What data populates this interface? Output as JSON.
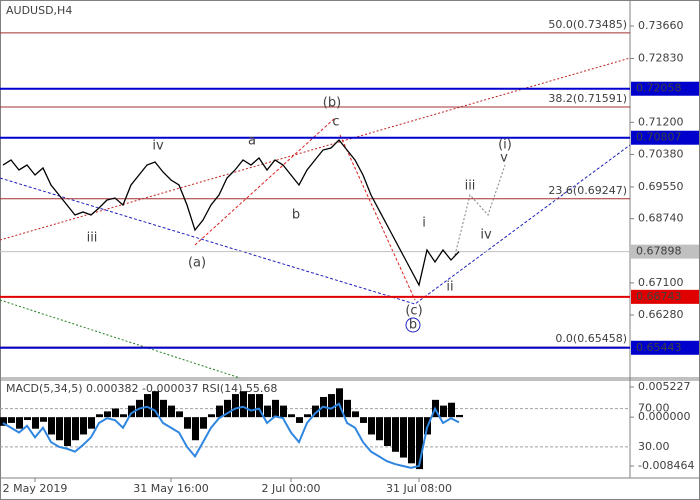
{
  "chart_data": [
    {
      "type": "line",
      "title": "AUDUSD,H4",
      "color": "#000000",
      "values": [
        0.7011,
        0.70238,
        0.69983,
        0.7011,
        0.69855,
        0.70034,
        0.696,
        0.69344,
        0.69089,
        0.68834,
        0.6891,
        0.68834,
        0.69012,
        0.69216,
        0.69267,
        0.69089,
        0.696,
        0.69855,
        0.7011,
        0.70187,
        0.69932,
        0.69727,
        0.696,
        0.69089,
        0.6845,
        0.68706,
        0.69089,
        0.69344,
        0.69778,
        0.69983,
        0.70238,
        0.7011,
        0.70289,
        0.69983,
        0.70238,
        0.7011,
        0.69855,
        0.696,
        0.69983,
        0.70238,
        0.70493,
        0.70544,
        0.70749,
        0.70493,
        0.70238,
        0.69855,
        0.69344,
        0.68961,
        0.68578,
        0.68195,
        0.67812,
        0.67429,
        0.67045,
        0.6794,
        0.67633,
        0.6794,
        0.67684,
        0.67898
      ],
      "ylim": [
        0.64671,
        0.74324
      ],
      "yticks": [
        {
          "value": 0.7366,
          "label": "0.73660"
        },
        {
          "value": 0.7283,
          "label": "0.72830"
        },
        {
          "value": 0.712,
          "label": "0.71200"
        },
        {
          "value": 0.7038,
          "label": "0.70380"
        },
        {
          "value": 0.6955,
          "label": "0.69550"
        },
        {
          "value": 0.6874,
          "label": "0.68740"
        },
        {
          "value": 0.671,
          "label": "0.67100"
        },
        {
          "value": 0.6628,
          "label": "0.66280"
        }
      ],
      "levels": [
        {
          "value": 0.72058,
          "label": "0.72058",
          "color": "#0000cc"
        },
        {
          "value": 0.70807,
          "label": "0.70807",
          "color": "#0000cc"
        },
        {
          "value": 0.67898,
          "label": "0.67898",
          "color": "#c0c0c0"
        },
        {
          "value": 0.66743,
          "label": "0.66743",
          "color": "#e00000"
        },
        {
          "value": 0.65443,
          "label": "0.65443",
          "color": "#0000cc"
        }
      ],
      "fib_levels": [
        {
          "value": 0.73485,
          "label": "50.0(0.73485)"
        },
        {
          "value": 0.71591,
          "label": "38.2(0.71591)"
        },
        {
          "value": 0.69247,
          "label": "23.6(0.69247)"
        },
        {
          "value": 0.65458,
          "label": "0.0(0.65458)"
        }
      ],
      "annotations": [
        {
          "text": "(b)",
          "color": "#e02020"
        },
        {
          "text": "c",
          "color": "#808080"
        },
        {
          "text": "iv",
          "color": "#808080"
        },
        {
          "text": "a",
          "color": "#808080"
        },
        {
          "text": "b",
          "color": "#808080"
        },
        {
          "text": "iii",
          "color": "#808080"
        },
        {
          "text": "(a)",
          "color": "#e02020"
        },
        {
          "text": "i",
          "color": "#808080"
        },
        {
          "text": "ii",
          "color": "#808080"
        },
        {
          "text": "(c)",
          "color": "#e02020"
        },
        {
          "text": "b",
          "color": "#2020c0"
        },
        {
          "text": "iii",
          "color": "#808080"
        },
        {
          "text": "iv",
          "color": "#808080"
        },
        {
          "text": "(i)",
          "color": "#e02020"
        },
        {
          "text": "v",
          "color": "#808080"
        }
      ]
    },
    {
      "type": "macd",
      "title": "MACD(5,34,5) 0.000382 -0.000037 RSI(14) 55.68",
      "color": "#000000",
      "categories": [
        null,
        null,
        null,
        null,
        "2 May 2019",
        null,
        null,
        null,
        null,
        null,
        null,
        null,
        null,
        null,
        null,
        null,
        null,
        null,
        null,
        null,
        null,
        "31 May 16:00",
        null,
        null,
        null,
        null,
        null,
        null,
        null,
        null,
        null,
        null,
        null,
        null,
        null,
        null,
        "2 Jul 00:00",
        null,
        null,
        null,
        null,
        null,
        null,
        null,
        null,
        null,
        null,
        null,
        null,
        null,
        null,
        null,
        "31 Jul 08:00",
        null,
        null,
        null,
        null,
        null
      ],
      "values": [
        -0.0015,
        -0.001,
        -0.002,
        -0.0005,
        -0.002,
        -0.0008,
        -0.003,
        -0.004,
        -0.005,
        -0.004,
        -0.003,
        -0.002,
        0.0005,
        0.001,
        0.0015,
        0.0005,
        0.002,
        0.003,
        0.004,
        0.0045,
        0.003,
        0.002,
        0.001,
        -0.002,
        -0.004,
        -0.002,
        0.0005,
        0.002,
        0.003,
        0.004,
        0.0045,
        0.004,
        0.004,
        0.002,
        0.003,
        0.002,
        0.0005,
        -0.001,
        0.0005,
        0.002,
        0.0035,
        0.004,
        0.005,
        0.003,
        0.001,
        -0.001,
        -0.003,
        -0.004,
        -0.005,
        -0.006,
        -0.007,
        -0.008,
        -0.009,
        -0.003,
        0.003,
        0.002,
        0.0025,
        0.000382
      ],
      "series": [
        {
          "axis": "y2",
          "color": "#2f86e0",
          "values": [
            55,
            50,
            45,
            52,
            40,
            50,
            35,
            30,
            28,
            25,
            32,
            40,
            55,
            60,
            58,
            50,
            65,
            70,
            72,
            68,
            55,
            50,
            45,
            30,
            20,
            35,
            50,
            60,
            65,
            70,
            72,
            68,
            70,
            55,
            62,
            60,
            45,
            35,
            55,
            65,
            72,
            70,
            75,
            55,
            50,
            35,
            25,
            20,
            15,
            12,
            10,
            8,
            10,
            50,
            70,
            55,
            60,
            55.68
          ]
        }
      ],
      "ylim": [
        -0.010544,
        0.00644
      ],
      "yticks": [
        {
          "value": 0.005227,
          "label": "0.005227"
        },
        {
          "value": 0,
          "label": "0.000000"
        },
        {
          "value": -0.008464,
          "label": "-0.008464"
        }
      ],
      "y2lim": [
        -2.6,
        100
      ],
      "y2ticks": [
        {
          "value": 70,
          "label": "70.00"
        },
        {
          "value": 30,
          "label": "30.00"
        }
      ]
    }
  ]
}
